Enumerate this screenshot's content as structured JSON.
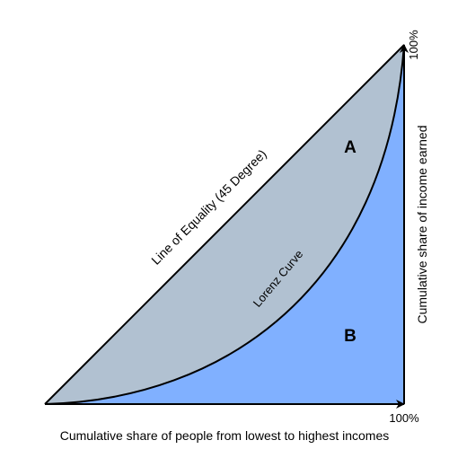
{
  "equality_line": {
    "label": "Line of Equality (45 Degree)"
  },
  "lorenz_curve": {
    "label": "Lorenz Curve"
  },
  "areas": {
    "a": "A",
    "b": "B"
  },
  "x_axis": {
    "label": "Cumulative share of people from lowest to highest incomes",
    "end_label": "100%"
  },
  "y_axis": {
    "label": "Cumulative share of income earned",
    "end_label": "100%"
  }
}
